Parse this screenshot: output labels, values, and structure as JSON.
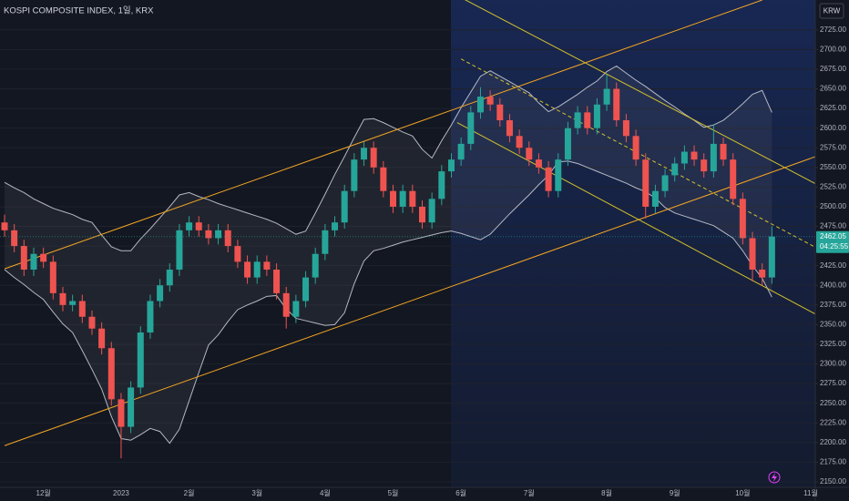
{
  "chart_data": {
    "type": "candlestick",
    "title": "KOSPI COMPOSITE INDEX, 1일, KRX",
    "currency": "KRW",
    "last_price": 2462.05,
    "countdown": "04:25:55",
    "up_color": "#26a69a",
    "down_color": "#ef5350",
    "grid": true,
    "ylim": [
      2143,
      2763
    ],
    "yticks": [
      {
        "value": 2150,
        "label": "2150.00"
      },
      {
        "value": 2175,
        "label": "2175.00"
      },
      {
        "value": 2200,
        "label": "2200.00"
      },
      {
        "value": 2225,
        "label": "2225.00"
      },
      {
        "value": 2250,
        "label": "2250.00"
      },
      {
        "value": 2275,
        "label": "2275.00"
      },
      {
        "value": 2300,
        "label": "2300.00"
      },
      {
        "value": 2325,
        "label": "2325.00"
      },
      {
        "value": 2350,
        "label": "2350.00"
      },
      {
        "value": 2375,
        "label": "2375.00"
      },
      {
        "value": 2400,
        "label": "2400.00"
      },
      {
        "value": 2425,
        "label": "2425.00"
      },
      {
        "value": 2450,
        "label": "2450.00"
      },
      {
        "value": 2475,
        "label": "2475.00"
      },
      {
        "value": 2500,
        "label": "2500.00"
      },
      {
        "value": 2525,
        "label": "2525.00"
      },
      {
        "value": 2550,
        "label": "2550.00"
      },
      {
        "value": 2575,
        "label": "2575.00"
      },
      {
        "value": 2600,
        "label": "2600.00"
      },
      {
        "value": 2625,
        "label": "2625.00"
      },
      {
        "value": 2650,
        "label": "2650.00"
      },
      {
        "value": 2675,
        "label": "2675.00"
      },
      {
        "value": 2700,
        "label": "2700.00"
      },
      {
        "value": 2725,
        "label": "2725.00"
      }
    ],
    "categories": [
      null,
      null,
      null,
      null,
      "12월",
      null,
      null,
      null,
      null,
      null,
      null,
      null,
      "2023",
      null,
      null,
      null,
      null,
      null,
      null,
      "2월",
      null,
      null,
      null,
      null,
      null,
      null,
      "3월",
      null,
      null,
      null,
      null,
      null,
      null,
      "4월",
      null,
      null,
      null,
      null,
      null,
      null,
      "5월",
      null,
      null,
      null,
      null,
      null,
      null,
      "6월",
      null,
      null,
      null,
      null,
      null,
      null,
      "7월",
      null,
      null,
      null,
      null,
      null,
      null,
      null,
      "8월",
      null,
      null,
      null,
      null,
      null,
      null,
      "9월",
      null,
      null,
      null,
      null,
      null,
      null,
      "10월",
      null,
      null,
      null,
      null,
      null,
      null,
      "11월"
    ],
    "candles": [
      [
        2480,
        2490,
        2462,
        2470
      ],
      [
        2470,
        2478,
        2442,
        2450
      ],
      [
        2450,
        2458,
        2412,
        2420
      ],
      [
        2420,
        2448,
        2412,
        2440
      ],
      [
        2440,
        2448,
        2422,
        2430
      ],
      [
        2430,
        2438,
        2382,
        2390
      ],
      [
        2390,
        2398,
        2367,
        2375
      ],
      [
        2375,
        2388,
        2367,
        2380
      ],
      [
        2380,
        2388,
        2352,
        2360
      ],
      [
        2360,
        2368,
        2337,
        2345
      ],
      [
        2345,
        2353,
        2312,
        2320
      ],
      [
        2320,
        2328,
        2247,
        2255
      ],
      [
        2255,
        2263,
        2180,
        2220
      ],
      [
        2220,
        2278,
        2212,
        2270
      ],
      [
        2270,
        2348,
        2262,
        2340
      ],
      [
        2340,
        2388,
        2332,
        2380
      ],
      [
        2380,
        2408,
        2372,
        2400
      ],
      [
        2400,
        2428,
        2392,
        2420
      ],
      [
        2420,
        2478,
        2412,
        2470
      ],
      [
        2470,
        2488,
        2462,
        2480
      ],
      [
        2480,
        2488,
        2462,
        2470
      ],
      [
        2470,
        2478,
        2452,
        2460
      ],
      [
        2460,
        2478,
        2452,
        2470
      ],
      [
        2470,
        2478,
        2442,
        2450
      ],
      [
        2450,
        2458,
        2422,
        2430
      ],
      [
        2430,
        2438,
        2402,
        2410
      ],
      [
        2410,
        2438,
        2402,
        2430
      ],
      [
        2430,
        2438,
        2412,
        2420
      ],
      [
        2420,
        2428,
        2382,
        2390
      ],
      [
        2390,
        2398,
        2345,
        2360
      ],
      [
        2360,
        2388,
        2352,
        2380
      ],
      [
        2380,
        2418,
        2372,
        2410
      ],
      [
        2410,
        2448,
        2402,
        2440
      ],
      [
        2440,
        2478,
        2432,
        2470
      ],
      [
        2470,
        2488,
        2462,
        2480
      ],
      [
        2480,
        2528,
        2472,
        2520
      ],
      [
        2520,
        2568,
        2512,
        2560
      ],
      [
        2560,
        2583,
        2552,
        2575
      ],
      [
        2575,
        2583,
        2542,
        2550
      ],
      [
        2550,
        2558,
        2512,
        2520
      ],
      [
        2520,
        2528,
        2492,
        2500
      ],
      [
        2500,
        2528,
        2492,
        2520
      ],
      [
        2520,
        2528,
        2492,
        2500
      ],
      [
        2500,
        2508,
        2472,
        2480
      ],
      [
        2480,
        2518,
        2472,
        2510
      ],
      [
        2510,
        2553,
        2502,
        2545
      ],
      [
        2545,
        2568,
        2537,
        2560
      ],
      [
        2560,
        2588,
        2552,
        2580
      ],
      [
        2580,
        2628,
        2572,
        2620
      ],
      [
        2620,
        2652,
        2612,
        2640
      ],
      [
        2640,
        2648,
        2622,
        2630
      ],
      [
        2630,
        2638,
        2602,
        2610
      ],
      [
        2610,
        2618,
        2582,
        2590
      ],
      [
        2590,
        2598,
        2567,
        2575
      ],
      [
        2575,
        2583,
        2552,
        2560
      ],
      [
        2560,
        2568,
        2542,
        2550
      ],
      [
        2550,
        2558,
        2512,
        2520
      ],
      [
        2520,
        2568,
        2512,
        2560
      ],
      [
        2560,
        2608,
        2552,
        2600
      ],
      [
        2600,
        2628,
        2592,
        2620
      ],
      [
        2620,
        2628,
        2592,
        2600
      ],
      [
        2600,
        2638,
        2592,
        2630
      ],
      [
        2630,
        2668,
        2622,
        2650
      ],
      [
        2650,
        2658,
        2602,
        2610
      ],
      [
        2610,
        2618,
        2582,
        2590
      ],
      [
        2590,
        2598,
        2552,
        2560
      ],
      [
        2560,
        2568,
        2485,
        2500
      ],
      [
        2500,
        2528,
        2492,
        2520
      ],
      [
        2520,
        2548,
        2512,
        2540
      ],
      [
        2540,
        2563,
        2532,
        2555
      ],
      [
        2555,
        2578,
        2547,
        2570
      ],
      [
        2570,
        2578,
        2552,
        2560
      ],
      [
        2560,
        2568,
        2537,
        2545
      ],
      [
        2545,
        2605,
        2537,
        2580
      ],
      [
        2580,
        2588,
        2552,
        2560
      ],
      [
        2560,
        2568,
        2502,
        2510
      ],
      [
        2510,
        2518,
        2452,
        2460
      ],
      [
        2460,
        2468,
        2405,
        2420
      ],
      [
        2420,
        2428,
        2400,
        2410
      ],
      [
        2410,
        2475,
        2402,
        2462.05
      ],
      null,
      null,
      null,
      null
    ],
    "bands": {
      "color": "#d1d4dc",
      "upper": [
        2531,
        2524,
        2518,
        2510,
        2504,
        2498,
        2494,
        2490,
        2484,
        2480,
        2464,
        2449,
        2444,
        2444,
        2459,
        2472,
        2486,
        2500,
        2515,
        2518,
        2513,
        2509,
        2504,
        2500,
        2496,
        2492,
        2488,
        2484,
        2479,
        2472,
        2465,
        2469,
        2492,
        2516,
        2541,
        2564,
        2588,
        2611,
        2612,
        2607,
        2601,
        2595,
        2590,
        2573,
        2562,
        2584,
        2604,
        2626,
        2646,
        2666,
        2673,
        2666,
        2659,
        2652,
        2645,
        2632,
        2621,
        2627,
        2635,
        2643,
        2652,
        2660,
        2672,
        2679,
        2670,
        2661,
        2653,
        2644,
        2635,
        2627,
        2618,
        2610,
        2601,
        2604,
        2610,
        2620,
        2631,
        2643,
        2648,
        2620
      ],
      "lower": [
        2420,
        2410,
        2401,
        2391,
        2382,
        2366,
        2351,
        2340,
        2317,
        2293,
        2268,
        2233,
        2205,
        2203,
        2210,
        2218,
        2214,
        2199,
        2217,
        2253,
        2289,
        2324,
        2337,
        2354,
        2369,
        2375,
        2380,
        2386,
        2387,
        2370,
        2358,
        2355,
        2352,
        2349,
        2350,
        2365,
        2402,
        2431,
        2444,
        2447,
        2451,
        2455,
        2458,
        2461,
        2464,
        2467,
        2469,
        2466,
        2462,
        2458,
        2465,
        2478,
        2491,
        2503,
        2515,
        2528,
        2540,
        2557,
        2558,
        2555,
        2550,
        2545,
        2540,
        2535,
        2530,
        2524,
        2519,
        2511,
        2499,
        2492,
        2488,
        2484,
        2480,
        2476,
        2468,
        2460,
        2444,
        2425,
        2409,
        2385
      ]
    },
    "channels": [
      {
        "color": "#f5a623",
        "dashed": false,
        "points": [
          [
            0,
            2421
          ],
          [
            78,
            2763
          ]
        ]
      },
      {
        "color": "#f5a623",
        "dashed": false,
        "points": [
          [
            0,
            2196
          ],
          [
            84,
            2566
          ]
        ]
      },
      {
        "color": "#d4c22a",
        "dashed": false,
        "points": [
          [
            47,
            2766
          ],
          [
            84,
            2526
          ]
        ]
      },
      {
        "color": "#d4c22a",
        "dashed": false,
        "points": [
          [
            46.6,
            2607
          ],
          [
            84,
            2360
          ]
        ]
      },
      {
        "color": "#d4c22a",
        "dashed": true,
        "points": [
          [
            47,
            2688
          ],
          [
            84,
            2445
          ]
        ]
      }
    ]
  }
}
